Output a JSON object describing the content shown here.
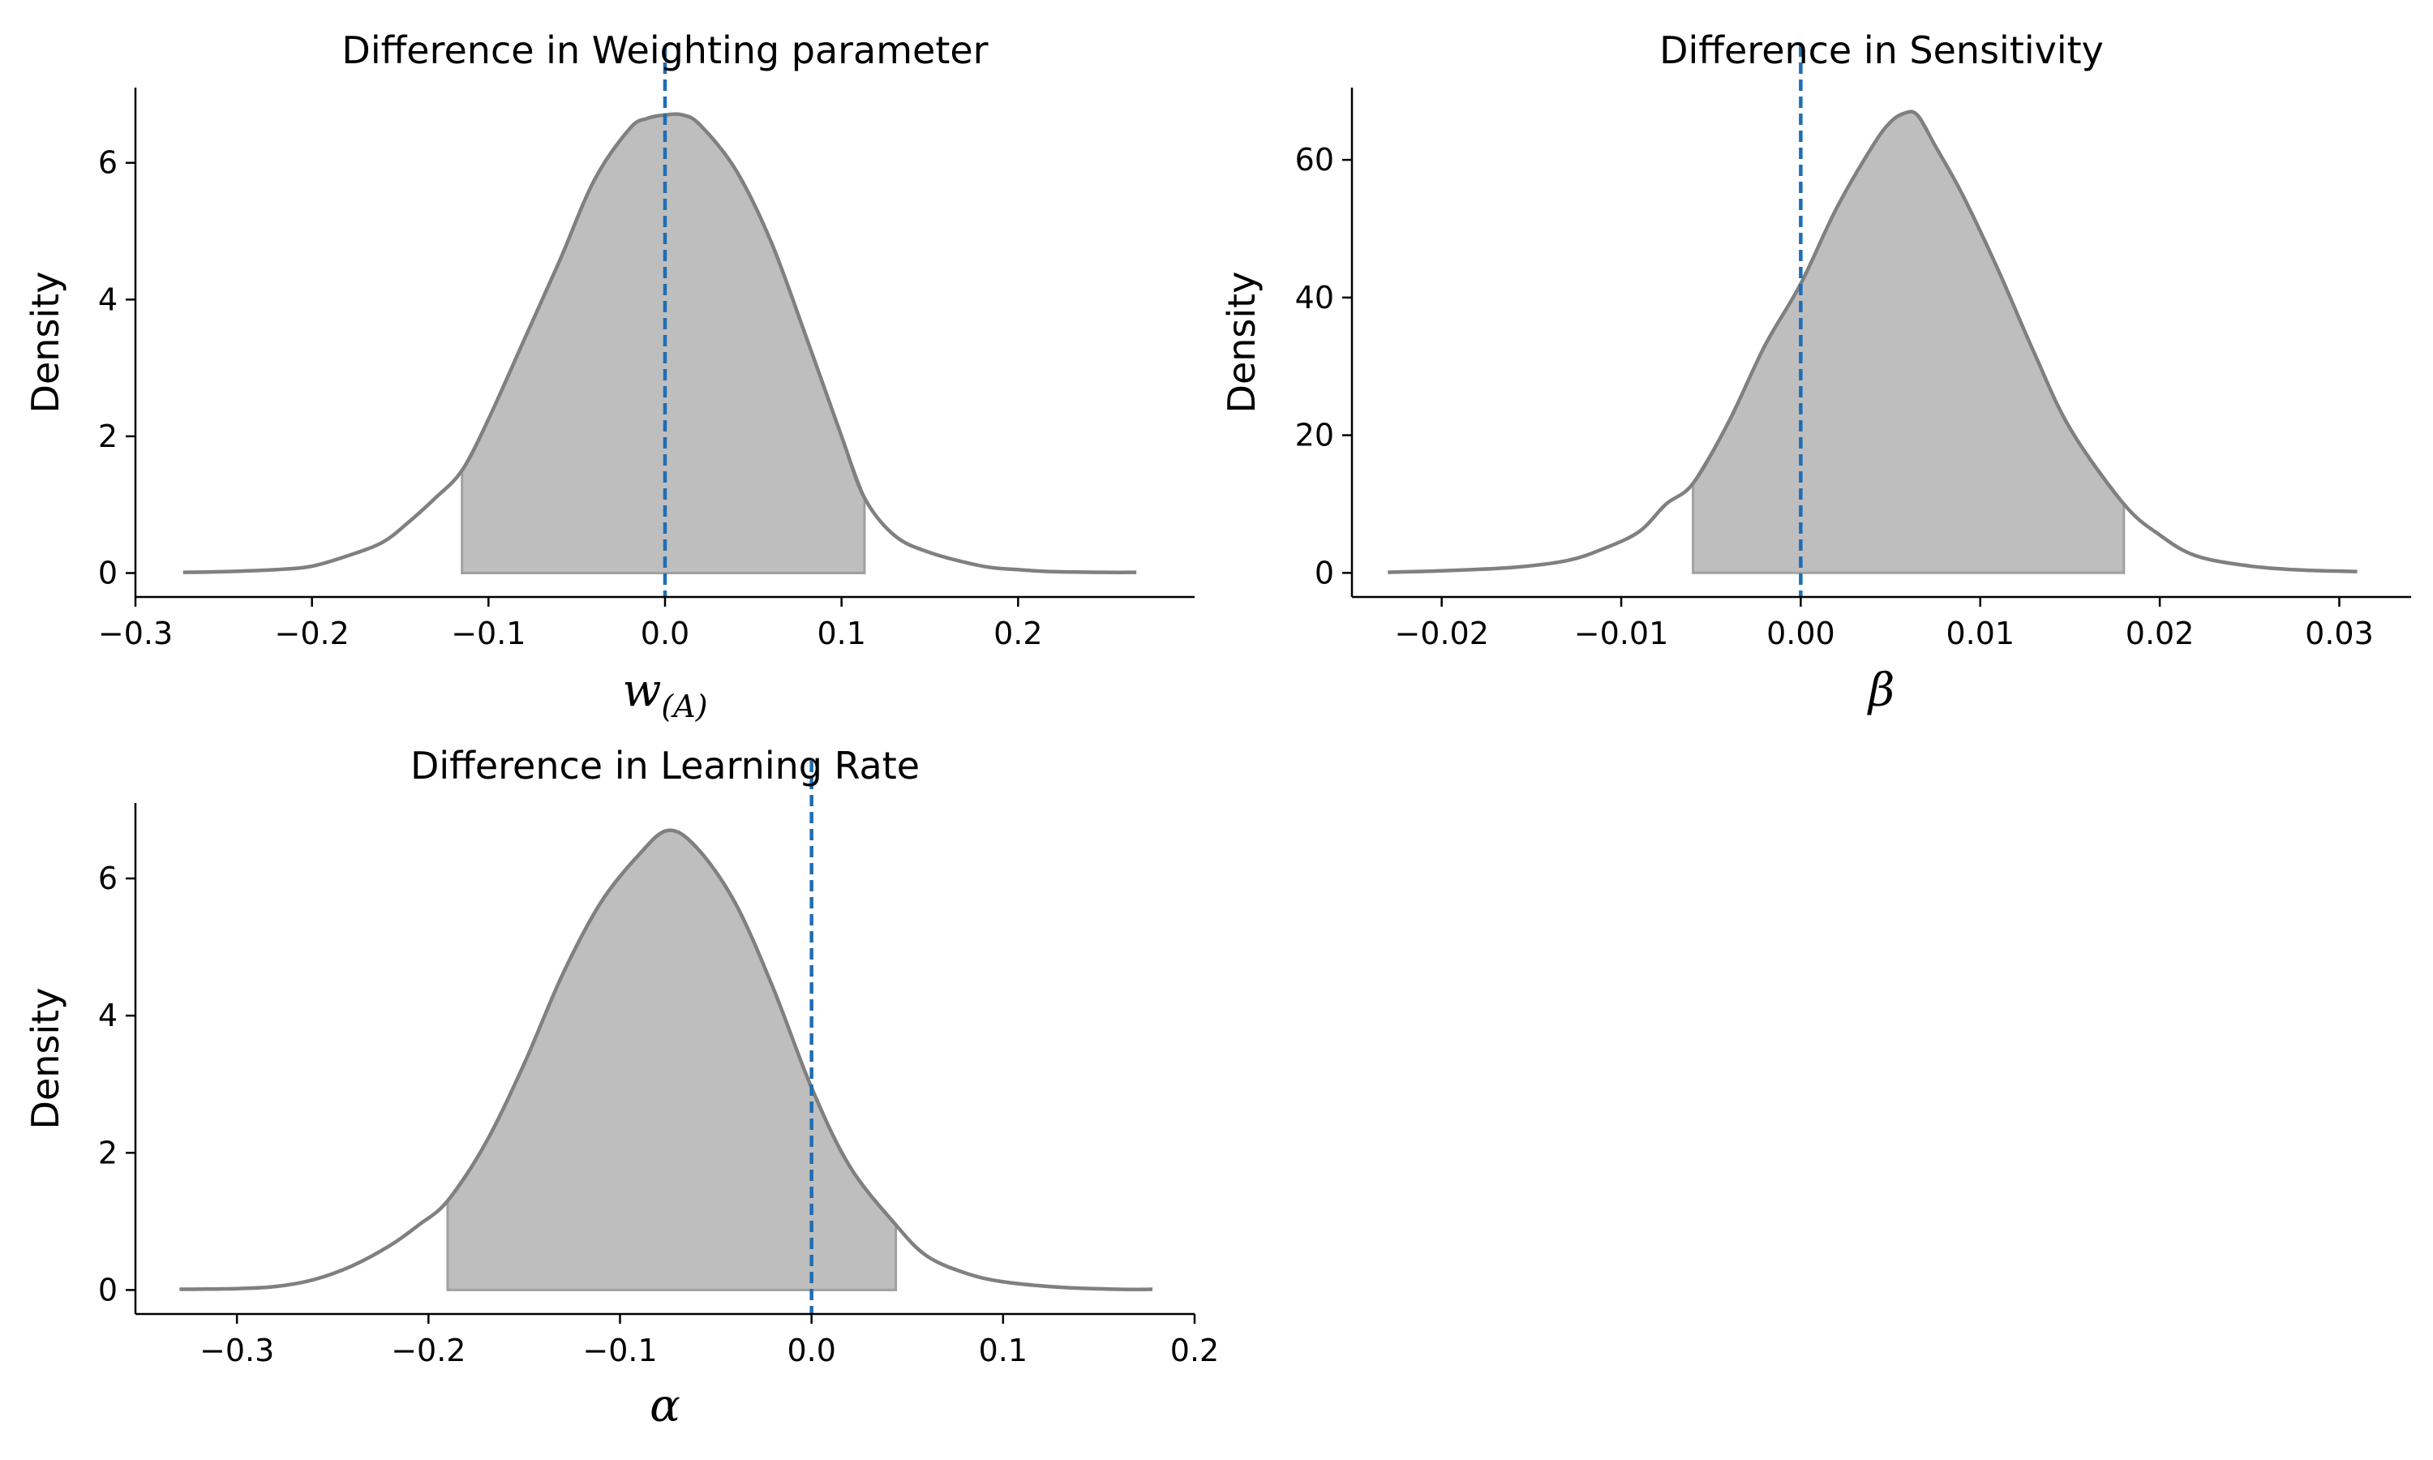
{
  "chart_data": [
    {
      "type": "area",
      "title": "Difference in Weighting parameter",
      "ylabel": "Density",
      "xlabel": "w",
      "xlabel_sub": "(A)",
      "xlim": [
        -0.3,
        0.3
      ],
      "ylim": [
        -0.35,
        7.1
      ],
      "xticks": [
        -0.3,
        -0.2,
        -0.1,
        0.0,
        0.1,
        0.2
      ],
      "xtick_labels": [
        "−0.3",
        "−0.2",
        "−0.1",
        "0.0",
        "0.1",
        "0.2"
      ],
      "yticks": [
        0,
        2,
        4,
        6
      ],
      "ytick_labels": [
        "0",
        "2",
        "4",
        "6"
      ],
      "reference_line_x": 0.0,
      "hdi": [
        -0.115,
        0.113
      ],
      "x": [
        -0.273,
        -0.25,
        -0.22,
        -0.2,
        -0.18,
        -0.16,
        -0.145,
        -0.13,
        -0.115,
        -0.1,
        -0.08,
        -0.06,
        -0.04,
        -0.02,
        -0.01,
        0.0,
        0.01,
        0.02,
        0.04,
        0.06,
        0.08,
        0.1,
        0.113,
        0.13,
        0.15,
        0.18,
        0.2,
        0.22,
        0.25,
        0.267
      ],
      "y": [
        0.01,
        0.02,
        0.05,
        0.1,
        0.25,
        0.45,
        0.75,
        1.1,
        1.5,
        2.25,
        3.4,
        4.55,
        5.75,
        6.5,
        6.65,
        6.7,
        6.7,
        6.55,
        5.9,
        4.85,
        3.45,
        2.0,
        1.1,
        0.55,
        0.3,
        0.1,
        0.05,
        0.02,
        0.01,
        0.01
      ],
      "colors": {
        "curve": "#808080",
        "fill": "#bebebe",
        "hdi_edge": "#a0a0a0",
        "reference": "#1f6eb4"
      }
    },
    {
      "type": "area",
      "title": "Difference in Sensitivity",
      "ylabel": "Density",
      "xlabel": "β",
      "xlim": [
        -0.025,
        0.034
      ],
      "ylim": [
        -3.5,
        70.5
      ],
      "xticks": [
        -0.02,
        -0.01,
        0.0,
        0.01,
        0.02,
        0.03
      ],
      "xtick_labels": [
        "−0.02",
        "−0.01",
        "0.00",
        "0.01",
        "0.02",
        "0.03"
      ],
      "yticks": [
        0,
        20,
        40,
        60
      ],
      "ytick_labels": [
        "0",
        "20",
        "40",
        "60"
      ],
      "reference_line_x": 0.0,
      "hdi": [
        -0.006,
        0.018
      ],
      "x": [
        -0.023,
        -0.02,
        -0.016,
        -0.013,
        -0.011,
        -0.009,
        -0.0075,
        -0.006,
        -0.004,
        -0.002,
        0.0,
        0.002,
        0.004,
        0.005,
        0.0058,
        0.0065,
        0.0075,
        0.009,
        0.011,
        0.013,
        0.015,
        0.018,
        0.02,
        0.022,
        0.025,
        0.028,
        0.031
      ],
      "y": [
        0.1,
        0.3,
        0.8,
        1.8,
        3.5,
        6.0,
        10.0,
        13.0,
        22.0,
        33.0,
        42.0,
        53.0,
        62.0,
        65.5,
        66.8,
        66.5,
        62.0,
        55.0,
        44.0,
        32.0,
        21.0,
        10.0,
        5.5,
        2.5,
        1.0,
        0.4,
        0.2
      ],
      "colors": {
        "curve": "#808080",
        "fill": "#bebebe",
        "hdi_edge": "#a0a0a0",
        "reference": "#1f6eb4"
      }
    },
    {
      "type": "area",
      "title": "Difference in Learning Rate",
      "ylabel": "Density",
      "xlabel": "α",
      "xlim": [
        -0.353,
        0.2
      ],
      "ylim": [
        -0.35,
        7.1
      ],
      "xticks": [
        -0.3,
        -0.2,
        -0.1,
        0.0,
        0.1,
        0.2
      ],
      "xtick_labels": [
        "−0.3",
        "−0.2",
        "−0.1",
        "0.0",
        "0.1",
        "0.2"
      ],
      "yticks": [
        0,
        2,
        4,
        6
      ],
      "ytick_labels": [
        "0",
        "2",
        "4",
        "6"
      ],
      "reference_line_x": 0.0,
      "hdi": [
        -0.19,
        0.044
      ],
      "x": [
        -0.33,
        -0.3,
        -0.28,
        -0.26,
        -0.24,
        -0.22,
        -0.205,
        -0.19,
        -0.17,
        -0.15,
        -0.13,
        -0.11,
        -0.09,
        -0.075,
        -0.06,
        -0.04,
        -0.02,
        0.0,
        0.02,
        0.044,
        0.06,
        0.08,
        0.1,
        0.13,
        0.16,
        0.178
      ],
      "y": [
        0.01,
        0.02,
        0.05,
        0.15,
        0.35,
        0.65,
        0.95,
        1.3,
        2.15,
        3.3,
        4.6,
        5.65,
        6.35,
        6.7,
        6.45,
        5.65,
        4.4,
        2.95,
        1.8,
        0.95,
        0.5,
        0.25,
        0.12,
        0.04,
        0.01,
        0.01
      ],
      "colors": {
        "curve": "#808080",
        "fill": "#bebebe",
        "hdi_edge": "#a0a0a0",
        "reference": "#1f6eb4"
      }
    }
  ]
}
